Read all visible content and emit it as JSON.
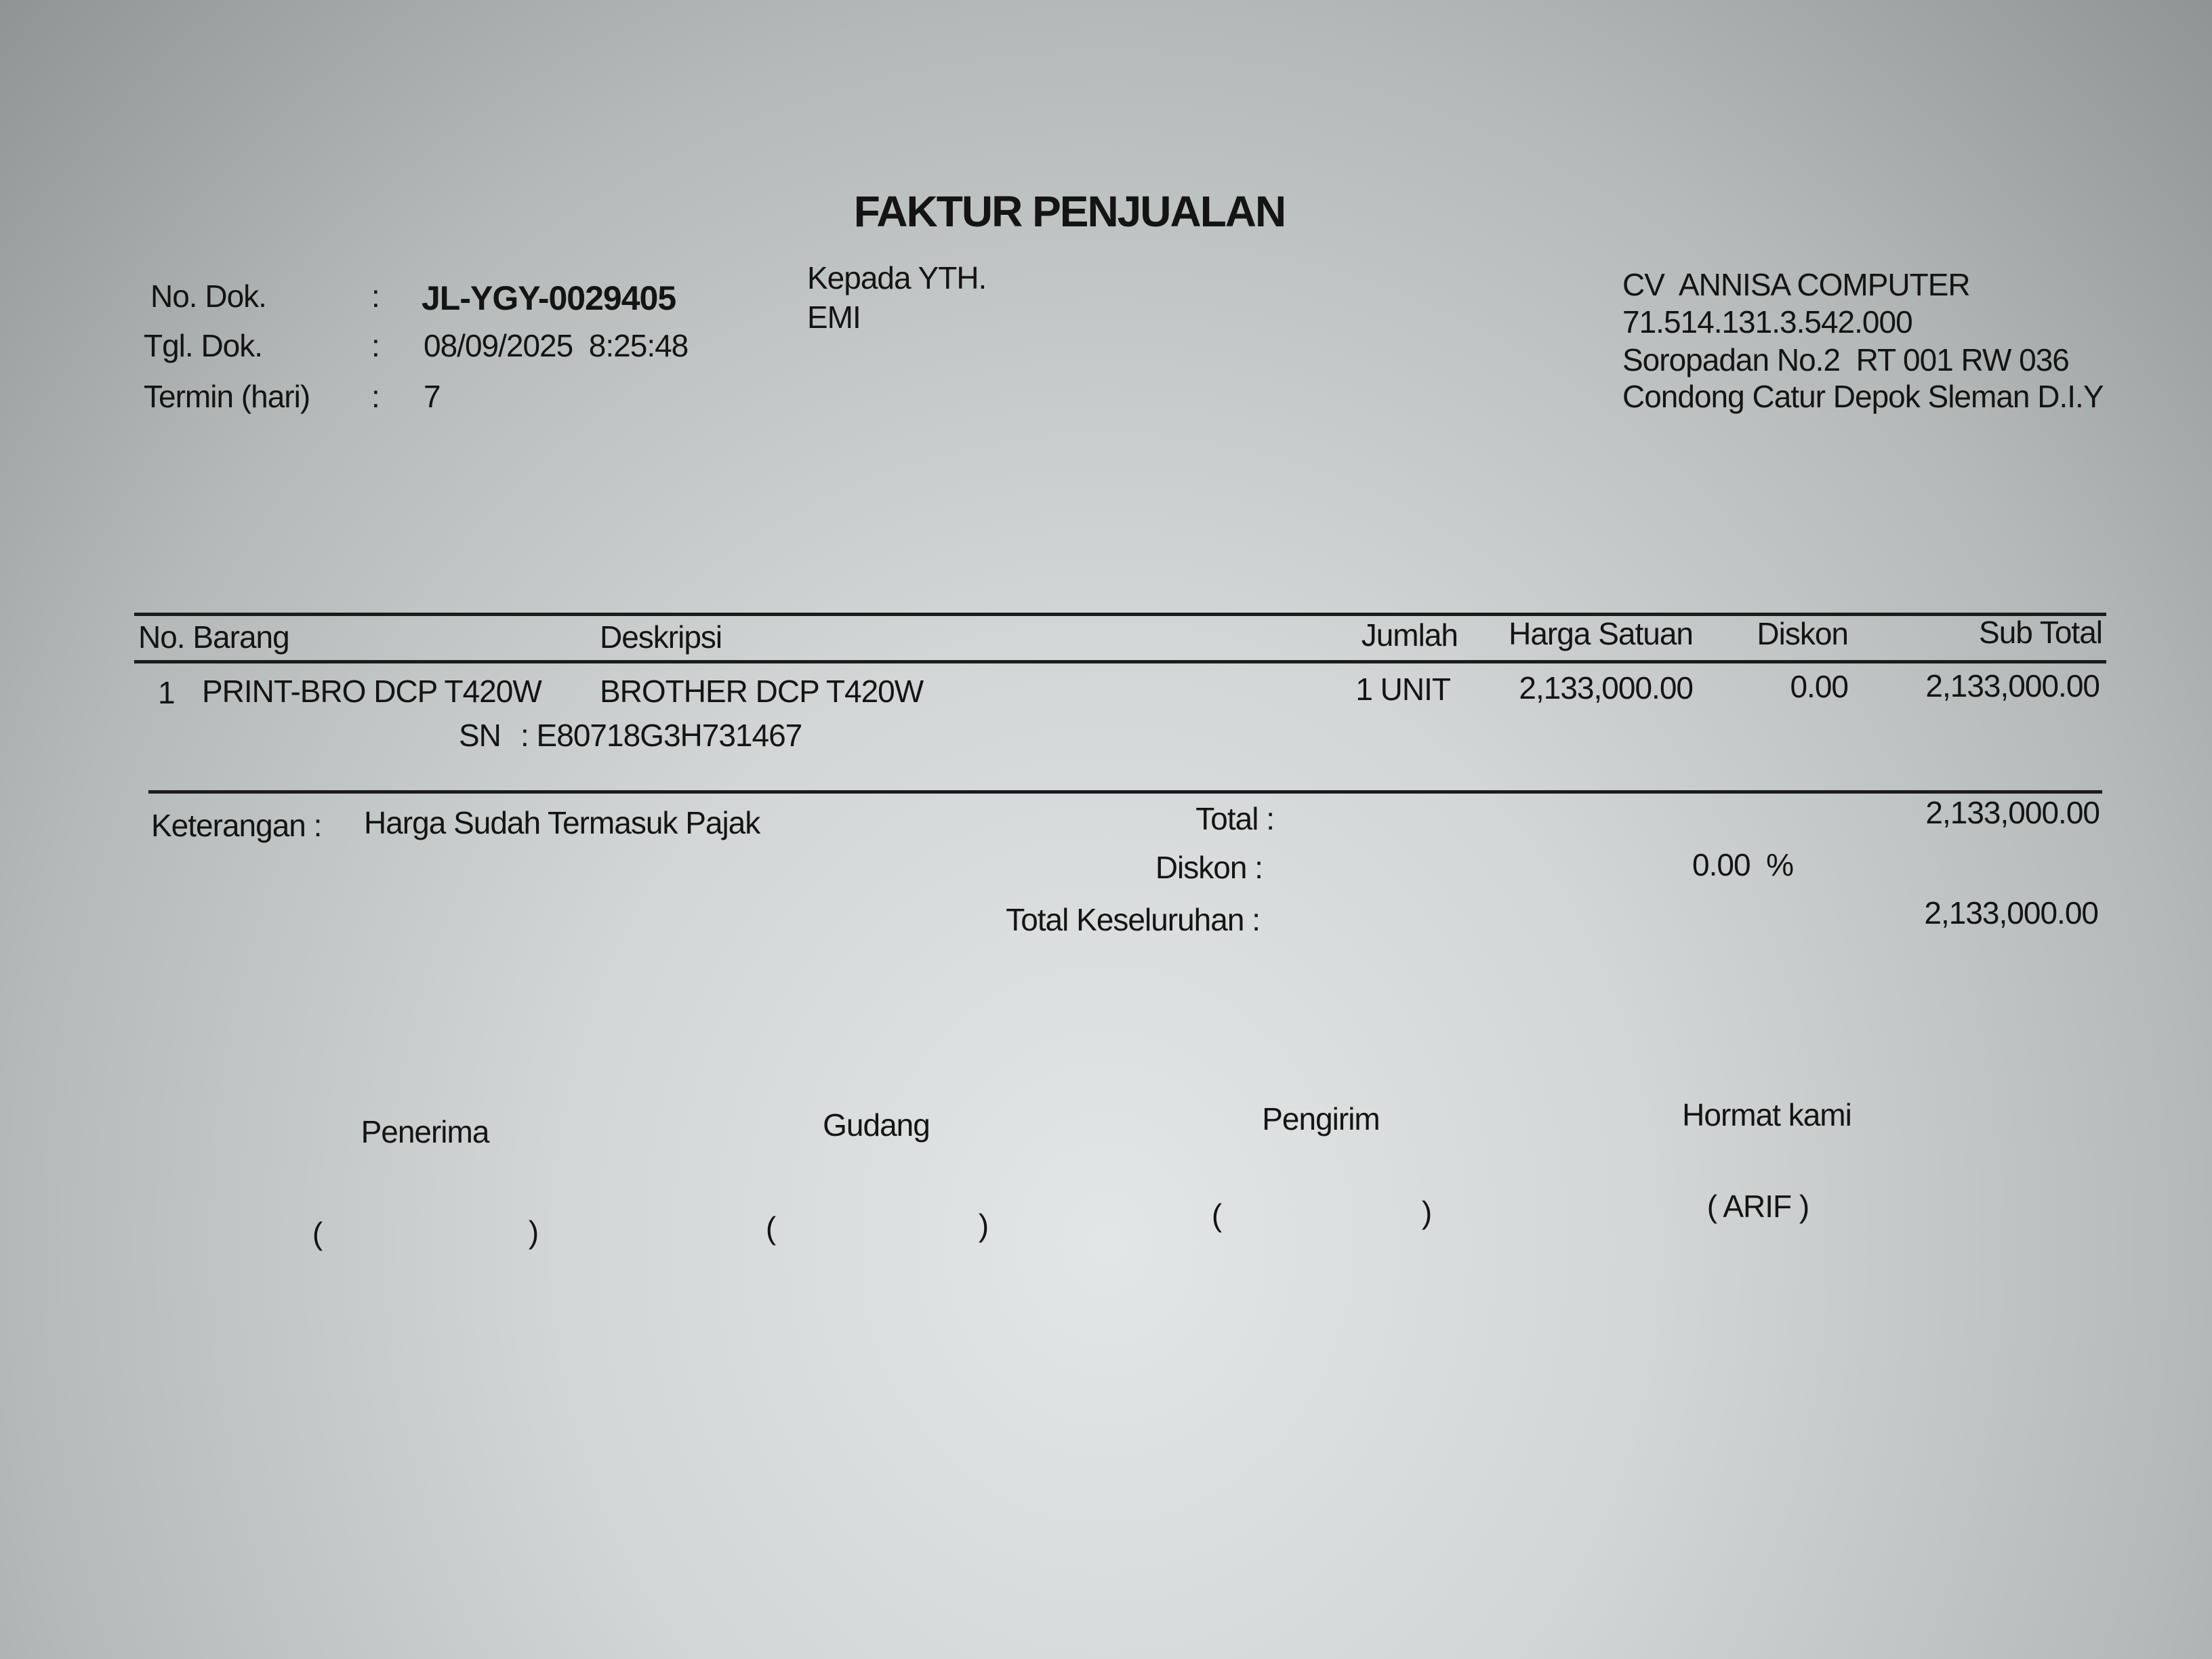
{
  "title": "FAKTUR PENJUALAN",
  "doc_info": {
    "no_dok_label": "No. Dok.",
    "no_dok": "JL-YGY-0029405",
    "tgl_dok_label": "Tgl. Dok.",
    "tgl_dok": "08/09/2025  8:25:48",
    "termin_label": "Termin (hari)",
    "termin": "7",
    "colon": ":"
  },
  "recipient": {
    "label": "Kepada YTH.",
    "name": "EMI"
  },
  "company": {
    "name": "CV  ANNISA COMPUTER",
    "npwp": "71.514.131.3.542.000",
    "address1": "Soropadan No.2  RT 001 RW 036",
    "address2": "Condong Catur Depok Sleman D.I.Y"
  },
  "table": {
    "headers": {
      "no_barang": "No. Barang",
      "deskripsi": "Deskripsi",
      "jumlah": "Jumlah",
      "harga_satuan": "Harga Satuan",
      "diskon": "Diskon",
      "sub_total": "Sub Total"
    },
    "rows": [
      {
        "no": "1",
        "kode": "PRINT-BRO DCP T420W",
        "deskripsi": "BROTHER DCP T420W",
        "sn_label": "SN",
        "sn": ": E80718G3H731467",
        "jumlah": "1 UNIT",
        "harga_satuan": "2,133,000.00",
        "diskon": "0.00",
        "sub_total": "2,133,000.00"
      }
    ]
  },
  "summary": {
    "keterangan_label": "Keterangan :",
    "keterangan": "Harga Sudah Termasuk Pajak",
    "total_label": "Total :",
    "total": "2,133,000.00",
    "diskon_label": "Diskon :",
    "diskon": "0.00  %",
    "grand_total_label": "Total Keseluruhan :",
    "grand_total": "2,133,000.00"
  },
  "signatures": {
    "penerima": "Penerima",
    "gudang": "Gudang",
    "pengirim": "Pengirim",
    "hormat_kami": "Hormat kami",
    "open_paren": "(",
    "close_paren": ")",
    "signer": "( ARIF )"
  }
}
